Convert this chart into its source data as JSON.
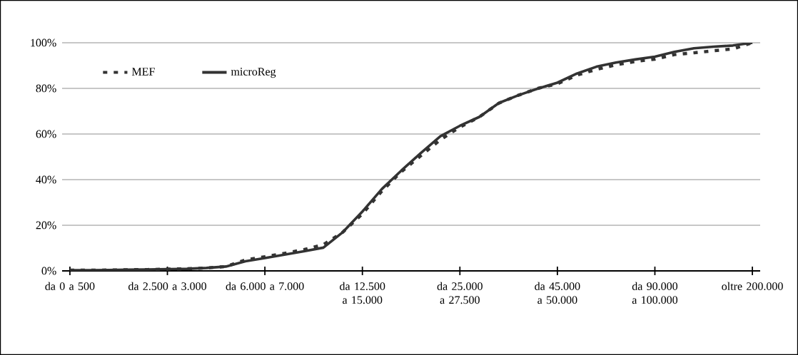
{
  "chart_data": {
    "type": "line",
    "categories": [
      "da 0 a 500",
      null,
      null,
      null,
      null,
      "da 2.500 a 3.000",
      null,
      null,
      null,
      null,
      "da 6.000 a 7.000",
      null,
      null,
      null,
      null,
      "da 12.500 a 15.000",
      null,
      null,
      null,
      null,
      "da 25.000 a 27.500",
      null,
      null,
      null,
      null,
      "da 45.000 a 50.000",
      null,
      null,
      null,
      null,
      "da 90.000 a 100.000",
      null,
      null,
      null,
      null,
      "oltre 200.000"
    ],
    "series": [
      {
        "name": "MEF",
        "color": "#333333",
        "line_style": "dashed",
        "values": [
          0.3,
          0.3,
          0.4,
          0.5,
          0.6,
          0.8,
          0.9,
          1.3,
          1.9,
          4.8,
          6.2,
          7.7,
          9.3,
          11.5,
          17,
          25,
          35,
          43.5,
          50.5,
          57.5,
          63,
          67.5,
          73.5,
          77,
          80,
          82,
          85.8,
          88.3,
          90.3,
          91.8,
          92.8,
          94.8,
          95.6,
          96.5,
          97.3,
          100
        ]
      },
      {
        "name": "microReg",
        "color": "#333333",
        "line_style": "solid",
        "values": [
          0.3,
          0.3,
          0.4,
          0.5,
          0.6,
          0.8,
          0.9,
          1.3,
          1.9,
          4.2,
          5.6,
          7.1,
          8.6,
          10.2,
          17,
          26,
          35.9,
          44,
          51.7,
          59,
          63.6,
          67.5,
          73.6,
          77,
          79.9,
          82.5,
          86.5,
          89.5,
          91.3,
          92.7,
          93.9,
          96,
          97.6,
          98.3,
          98.8,
          100
        ]
      }
    ],
    "ylim": [
      0,
      100
    ],
    "yticks": [
      {
        "value": 0,
        "label": "0%"
      },
      {
        "value": 20,
        "label": "20%"
      },
      {
        "value": 40,
        "label": "40%"
      },
      {
        "value": 60,
        "label": "60%"
      },
      {
        "value": 80,
        "label": "80%"
      },
      {
        "value": 100,
        "label": "100%"
      }
    ],
    "grid": "y",
    "legend": "top left",
    "marker": "none"
  }
}
